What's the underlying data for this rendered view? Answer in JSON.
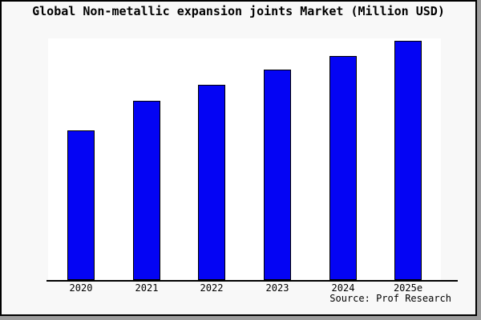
{
  "source_credit": "Source: Prof Research",
  "colors": {
    "bar_fill": "#0404F4",
    "bar_border": "#000000",
    "figure_background": "#F8F8F8",
    "plot_background": "#FFFFFF",
    "frame_border": "#000000",
    "shadow": "#9C9C9C",
    "text": "#000000"
  },
  "chart_data": {
    "type": "bar",
    "title": "Global Non-metallic expansion joints Market (Million USD)",
    "categories": [
      "2020",
      "2021",
      "2022",
      "2023",
      "2024",
      "2025e"
    ],
    "values": [
      62.5,
      75,
      81.5,
      88,
      93.5,
      100
    ],
    "units": "relative scale, tallest bar (2025e) = 100; no numeric y-axis shown in figure",
    "xlabel": "",
    "ylabel": "",
    "ylim": [
      0,
      101
    ],
    "grid": false,
    "legend": null,
    "bar_color": "#0404F4"
  }
}
